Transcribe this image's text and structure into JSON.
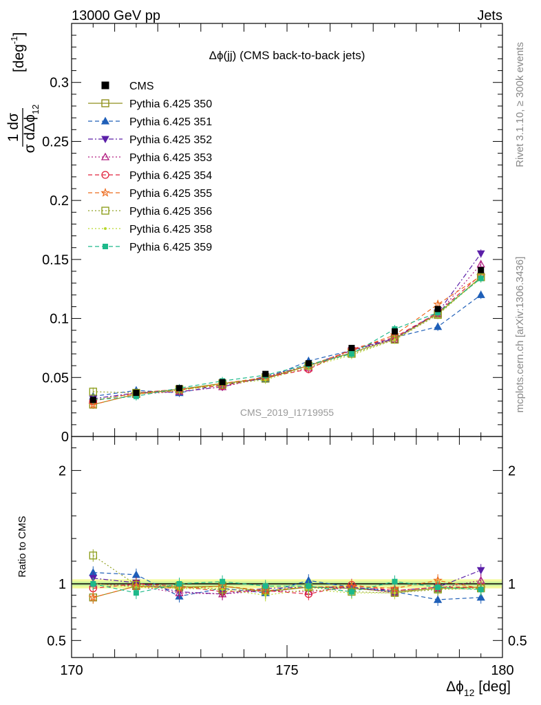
{
  "header": {
    "beam": "13000 GeV pp",
    "process": "Jets",
    "plot_title": "Δϕ(jj) (CMS back-to-back jets)",
    "watermark": "CMS_2019_I1719955",
    "side_rivet": "Rivet 3.1.10, ≥ 300k events",
    "side_mcplots": "mcplots.cern.ch [arXiv:1306.3436]"
  },
  "chart_data": [
    {
      "type": "scatter",
      "panel": "main",
      "ylabel_parts": {
        "frac_num": "1 dσ",
        "frac_den": "σ dΔϕ",
        "frac_den_sub": "12",
        "unit": "[deg",
        "unit_sup": "-1",
        "unit_close": "]"
      },
      "ylim": [
        0,
        0.35
      ],
      "yticks": [
        {
          "v": 0,
          "label": "0"
        },
        {
          "v": 0.05,
          "label": "0.05"
        },
        {
          "v": 0.1,
          "label": "0.1"
        },
        {
          "v": 0.15,
          "label": "0.15"
        },
        {
          "v": 0.2,
          "label": "0.2"
        },
        {
          "v": 0.25,
          "label": "0.25"
        },
        {
          "v": 0.3,
          "label": "0.3"
        }
      ],
      "x": [
        170.5,
        171.5,
        172.5,
        173.5,
        174.5,
        175.5,
        176.5,
        177.5,
        178.5,
        179.5
      ],
      "data_series": {
        "name": "CMS",
        "color": "#000000",
        "values": [
          0.031,
          0.037,
          0.041,
          0.046,
          0.053,
          0.062,
          0.075,
          0.089,
          0.108,
          0.141
        ]
      },
      "series": [
        {
          "name": "Pythia 6.425 350",
          "color": "#8f8f1a",
          "marker": "square-open",
          "dash": "solid",
          "values": [
            0.027,
            0.036,
            0.04,
            0.045,
            0.049,
            0.06,
            0.071,
            0.083,
            0.104,
            0.135
          ]
        },
        {
          "name": "Pythia 6.425 351",
          "color": "#1f5fb8",
          "marker": "triangle-up",
          "dash": "dashed",
          "values": [
            0.034,
            0.039,
            0.037,
            0.044,
            0.049,
            0.064,
            0.073,
            0.084,
            0.093,
            0.12
          ]
        },
        {
          "name": "Pythia 6.425 352",
          "color": "#5b1fa8",
          "marker": "triangle-down",
          "dash": "dashdot",
          "values": [
            0.032,
            0.037,
            0.038,
            0.042,
            0.051,
            0.06,
            0.073,
            0.083,
            0.105,
            0.155
          ]
        },
        {
          "name": "Pythia 6.425 353",
          "color": "#b01a7f",
          "marker": "triangle-up-open",
          "dash": "dotted",
          "values": [
            0.031,
            0.036,
            0.038,
            0.042,
            0.05,
            0.058,
            0.073,
            0.082,
            0.104,
            0.146
          ]
        },
        {
          "name": "Pythia 6.425 354",
          "color": "#e0203a",
          "marker": "circle-open",
          "dash": "dashed",
          "values": [
            0.03,
            0.037,
            0.04,
            0.043,
            0.05,
            0.057,
            0.074,
            0.084,
            0.105,
            0.137
          ]
        },
        {
          "name": "Pythia 6.425 355",
          "color": "#ec6a1c",
          "marker": "star-open",
          "dash": "dashed",
          "values": [
            0.027,
            0.036,
            0.039,
            0.045,
            0.05,
            0.06,
            0.073,
            0.086,
            0.112,
            0.136
          ]
        },
        {
          "name": "Pythia 6.425 356",
          "color": "#8fa020",
          "marker": "square-open",
          "dash": "dotted",
          "values": [
            0.038,
            0.037,
            0.04,
            0.044,
            0.05,
            0.06,
            0.07,
            0.082,
            0.103,
            0.135
          ]
        },
        {
          "name": "Pythia 6.425 358",
          "color": "#b8d82a",
          "marker": "dot",
          "dash": "dotted",
          "values": [
            0.031,
            0.036,
            0.039,
            0.044,
            0.048,
            0.059,
            0.069,
            0.082,
            0.104,
            0.134
          ]
        },
        {
          "name": "Pythia 6.425 359",
          "color": "#1db98a",
          "marker": "square-small",
          "dash": "dashed",
          "values": [
            0.031,
            0.034,
            0.041,
            0.047,
            0.052,
            0.061,
            0.07,
            0.091,
            0.105,
            0.134
          ]
        }
      ]
    },
    {
      "type": "scatter",
      "panel": "ratio",
      "ylabel": "Ratio to CMS",
      "ylim": [
        0.35,
        2.3
      ],
      "yticks": [
        {
          "v": 0.5,
          "label": "0.5"
        },
        {
          "v": 1,
          "label": "1"
        },
        {
          "v": 2,
          "label": "2"
        }
      ],
      "xlabel_parts": {
        "main": "Δϕ",
        "sub": "12",
        "unit": " [deg]"
      },
      "xlim": [
        170,
        180
      ],
      "xticks": [
        {
          "v": 170,
          "label": "170"
        },
        {
          "v": 175,
          "label": "175"
        },
        {
          "v": 180,
          "label": "180"
        }
      ],
      "x": [
        170.5,
        171.5,
        172.5,
        173.5,
        174.5,
        175.5,
        176.5,
        177.5,
        178.5,
        179.5
      ],
      "series": [
        {
          "name": "Pythia 6.425 350",
          "values": [
            0.88,
            0.98,
            0.97,
            0.98,
            0.93,
            0.97,
            0.96,
            0.93,
            0.96,
            0.97
          ]
        },
        {
          "name": "Pythia 6.425 351",
          "values": [
            1.1,
            1.08,
            0.89,
            0.96,
            0.92,
            1.03,
            0.97,
            0.93,
            0.86,
            0.88
          ]
        },
        {
          "name": "Pythia 6.425 352",
          "values": [
            1.05,
            1.01,
            0.93,
            0.91,
            0.96,
            0.97,
            0.97,
            0.94,
            0.97,
            1.12
          ]
        },
        {
          "name": "Pythia 6.425 353",
          "values": [
            1.0,
            0.98,
            0.92,
            0.91,
            0.94,
            0.93,
            0.97,
            0.92,
            0.96,
            1.03
          ]
        },
        {
          "name": "Pythia 6.425 354",
          "values": [
            0.96,
            1.0,
            0.98,
            0.93,
            0.94,
            0.91,
            0.99,
            0.94,
            0.97,
            0.97
          ]
        },
        {
          "name": "Pythia 6.425 355",
          "values": [
            0.88,
            0.98,
            0.96,
            0.98,
            0.94,
            0.97,
            0.98,
            0.96,
            1.03,
            0.96
          ]
        },
        {
          "name": "Pythia 6.425 356",
          "values": [
            1.25,
            0.99,
            0.98,
            0.95,
            0.94,
            0.97,
            0.93,
            0.92,
            0.95,
            0.96
          ]
        },
        {
          "name": "Pythia 6.425 358",
          "values": [
            1.0,
            0.97,
            0.96,
            0.95,
            0.9,
            0.95,
            0.92,
            0.92,
            0.96,
            0.95
          ]
        },
        {
          "name": "Pythia 6.425 359",
          "values": [
            1.0,
            0.92,
            1.0,
            1.02,
            0.98,
            0.98,
            0.93,
            1.02,
            0.97,
            0.95
          ]
        }
      ]
    }
  ]
}
